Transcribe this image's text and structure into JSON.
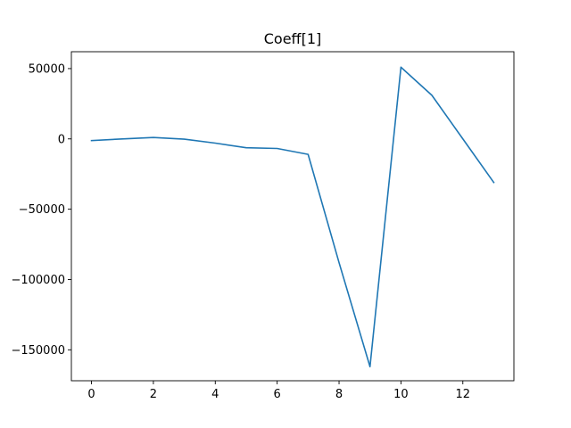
{
  "chart_data": {
    "type": "line",
    "title": "Coeff[1]",
    "xlabel": "",
    "ylabel": "",
    "xlim": [
      -0.65,
      13.65
    ],
    "ylim": [
      -172000,
      62000
    ],
    "xticks": [
      0,
      2,
      4,
      6,
      8,
      10,
      12
    ],
    "xtick_labels": [
      "0",
      "2",
      "4",
      "6",
      "8",
      "10",
      "12"
    ],
    "yticks": [
      50000,
      0,
      -50000,
      -100000,
      -150000
    ],
    "ytick_labels": [
      "50000",
      "0",
      "−50000",
      "−100000",
      "−150000"
    ],
    "grid": false,
    "legend": "none",
    "series": [
      {
        "color": "#1f77b4",
        "x": [
          0,
          1,
          2,
          3,
          4,
          5,
          6,
          7,
          8,
          9,
          10,
          11,
          12,
          13
        ],
        "y": [
          -1200,
          0,
          1000,
          -200,
          -3000,
          -6300,
          -6800,
          -11000,
          -88000,
          -162000,
          51000,
          31000,
          0,
          -31000
        ]
      }
    ]
  }
}
